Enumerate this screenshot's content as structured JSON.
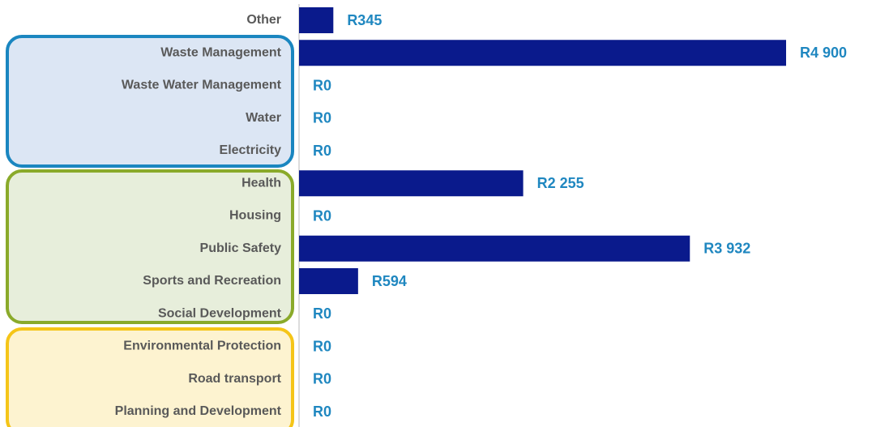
{
  "chart_data": {
    "type": "bar",
    "orientation": "horizontal",
    "categories": [
      "Other",
      "Waste Management",
      "Waste Water Management",
      "Water",
      "Electricity",
      "Health",
      "Housing",
      "Public Safety",
      "Sports and Recreation",
      "Social Development",
      "Environmental Protection",
      "Road transport",
      "Planning and Development"
    ],
    "values": [
      345,
      4900,
      0,
      0,
      0,
      2255,
      0,
      3932,
      594,
      0,
      0,
      0,
      0
    ],
    "value_labels": [
      "R345",
      "R4 900",
      "R0",
      "R0",
      "R0",
      "R2 255",
      "R0",
      "R3 932",
      "R594",
      "R0",
      "R0",
      "R0",
      "R0"
    ],
    "color": "#0a1a8c"
  }
}
